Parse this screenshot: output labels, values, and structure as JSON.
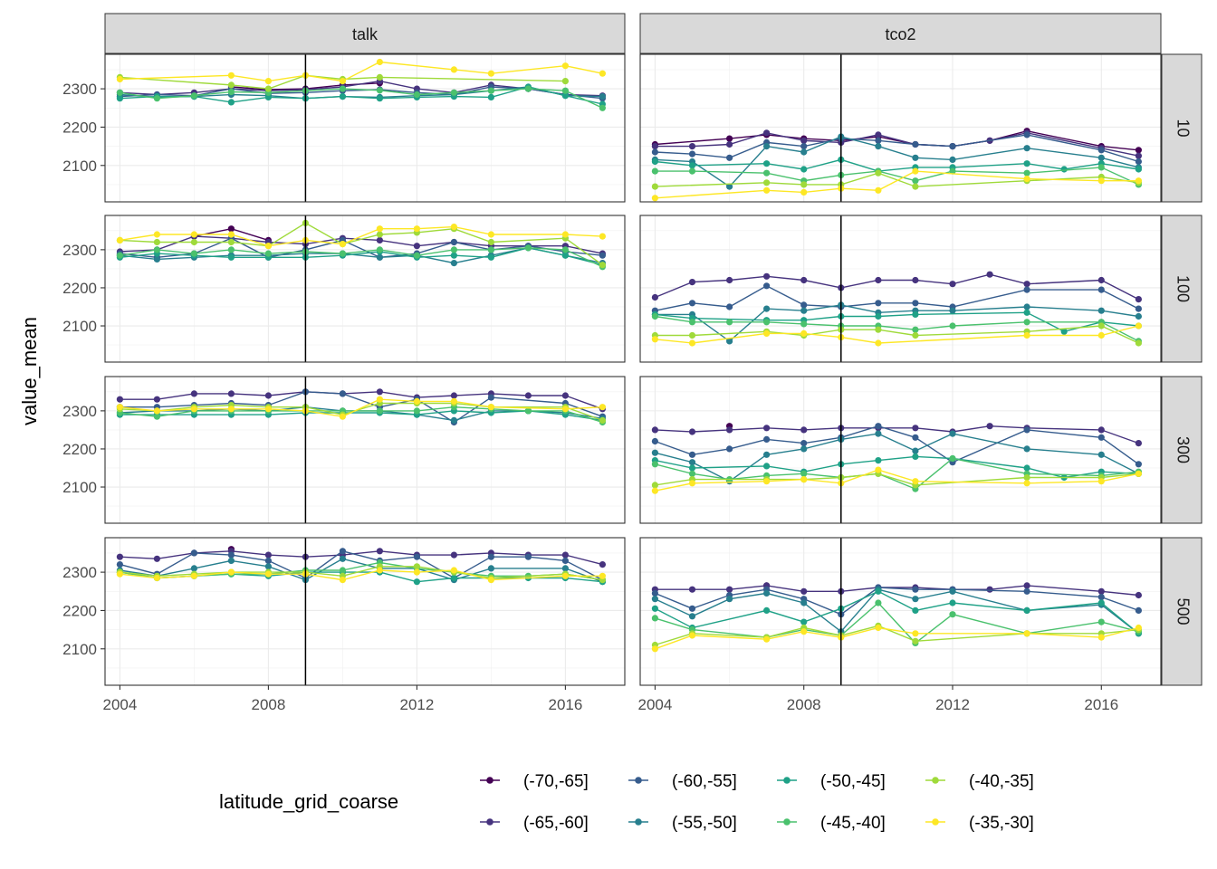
{
  "chart_data": {
    "type": "line",
    "facet_columns": [
      "talk",
      "tco2"
    ],
    "facet_rows": [
      "10",
      "100",
      "300",
      "500"
    ],
    "ylabel": "value_mean",
    "xlabel": "",
    "x_ticks": [
      2004,
      2008,
      2012,
      2016
    ],
    "y_ticks": [
      2100,
      2200,
      2300
    ],
    "xlim": [
      2003.6,
      2017.6
    ],
    "ylim": [
      2005,
      2390
    ],
    "reference_line_x": 2009,
    "legend": {
      "title": "latitude_grid_coarse",
      "position": "bottom",
      "entries": [
        "(-70,-65]",
        "(-65,-60]",
        "(-60,-55]",
        "(-55,-50]",
        "(-50,-45]",
        "(-45,-40]",
        "(-40,-35]",
        "(-35,-30]"
      ]
    },
    "colors": [
      "#440154",
      "#46337e",
      "#365c8d",
      "#277f8e",
      "#1fa187",
      "#4ac16d",
      "#9fda3a",
      "#fde725"
    ],
    "x": [
      2004,
      2005,
      2006,
      2007,
      2008,
      2009,
      2010,
      2011,
      2012,
      2013,
      2014,
      2015,
      2016,
      2017
    ],
    "panels": [
      {
        "column": "talk",
        "row": "10",
        "series": [
          [
            null,
            null,
            null,
            2305,
            2298,
            2300,
            2310,
            2315,
            null,
            null,
            null,
            null,
            null,
            null
          ],
          [
            2290,
            2285,
            2290,
            2300,
            2295,
            2298,
            2305,
            2320,
            2300,
            2290,
            2310,
            2300,
            2285,
            2282
          ],
          [
            2280,
            2285,
            2282,
            2300,
            2288,
            2290,
            2295,
            2298,
            2290,
            2285,
            2305,
            2300,
            2285,
            2275
          ],
          [
            2285,
            2278,
            2280,
            2285,
            2282,
            2275,
            2280,
            2278,
            2282,
            2285,
            2295,
            2305,
            2282,
            2280
          ],
          [
            2275,
            2280,
            2280,
            2265,
            2278,
            2275,
            2280,
            2275,
            2278,
            2280,
            2278,
            2305,
            2282,
            2260
          ],
          [
            2290,
            2275,
            2282,
            2292,
            2290,
            2295,
            2300,
            2296,
            2285,
            2290,
            2295,
            2300,
            2295,
            2250
          ],
          [
            2330,
            null,
            null,
            2310,
            2300,
            2335,
            2325,
            2330,
            null,
            null,
            null,
            null,
            2320,
            null
          ],
          [
            2325,
            null,
            null,
            2335,
            2320,
            2335,
            2320,
            2370,
            null,
            2350,
            2340,
            null,
            2360,
            2340
          ]
        ]
      },
      {
        "column": "tco2",
        "row": "10",
        "series": [
          [
            2155,
            null,
            2170,
            2180,
            2170,
            2165,
            2175,
            2155,
            2150,
            2165,
            2190,
            null,
            2150,
            2140
          ],
          [
            2150,
            2150,
            2155,
            2185,
            2165,
            2160,
            2180,
            2155,
            2150,
            2165,
            2185,
            null,
            2145,
            2125
          ],
          [
            2135,
            2130,
            2120,
            2160,
            2150,
            2170,
            2165,
            2155,
            2150,
            null,
            2180,
            null,
            2140,
            2110
          ],
          [
            2115,
            2110,
            2045,
            2150,
            2135,
            2175,
            2150,
            2120,
            2115,
            null,
            2145,
            null,
            2120,
            2095
          ],
          [
            2110,
            2100,
            null,
            2105,
            2090,
            2115,
            2085,
            2095,
            2095,
            null,
            2105,
            2090,
            2105,
            2090
          ],
          [
            2085,
            2085,
            null,
            2080,
            2060,
            2075,
            2085,
            2060,
            2085,
            null,
            2080,
            null,
            2095,
            2050
          ],
          [
            2045,
            null,
            null,
            2055,
            2050,
            2050,
            2080,
            2045,
            null,
            null,
            2060,
            null,
            2070,
            2055
          ],
          [
            2015,
            null,
            null,
            2035,
            2030,
            2040,
            2035,
            2085,
            null,
            null,
            2065,
            null,
            2060,
            2060
          ]
        ]
      },
      {
        "column": "talk",
        "row": "100",
        "series": [
          [
            null,
            null,
            2335,
            2355,
            2325,
            null,
            null,
            null,
            null,
            null,
            null,
            null,
            null,
            null
          ],
          [
            2295,
            2300,
            2335,
            2330,
            2320,
            2315,
            2330,
            2325,
            2310,
            2320,
            2310,
            2310,
            2310,
            2290
          ],
          [
            2290,
            2280,
            2290,
            2330,
            2280,
            2300,
            2325,
            2280,
            2290,
            2320,
            2300,
            2310,
            2295,
            2285
          ],
          [
            2285,
            2275,
            2280,
            2285,
            2285,
            2290,
            2290,
            2280,
            2285,
            2265,
            2285,
            2305,
            2285,
            2265
          ],
          [
            2280,
            2290,
            2285,
            2280,
            2280,
            2280,
            2285,
            2295,
            2280,
            2285,
            2280,
            2305,
            2285,
            2260
          ],
          [
            2285,
            2300,
            2290,
            2300,
            2290,
            2295,
            2290,
            2300,
            2285,
            2300,
            2300,
            2305,
            2300,
            2255
          ],
          [
            2325,
            2320,
            2320,
            2320,
            2310,
            2370,
            2315,
            2340,
            2345,
            2355,
            2320,
            null,
            2330,
            2260
          ],
          [
            2325,
            2340,
            2340,
            2340,
            2310,
            2325,
            2315,
            2355,
            2355,
            2360,
            2340,
            null,
            2340,
            2335
          ]
        ]
      },
      {
        "column": "tco2",
        "row": "100",
        "series": [
          [
            null,
            null,
            null,
            null,
            null,
            null,
            null,
            null,
            null,
            null,
            null,
            null,
            null,
            null
          ],
          [
            2175,
            2215,
            2220,
            2230,
            2220,
            2200,
            2220,
            2220,
            2210,
            2235,
            2210,
            null,
            2220,
            2170
          ],
          [
            2140,
            2160,
            2150,
            2205,
            2155,
            2150,
            2160,
            2160,
            2150,
            null,
            2195,
            null,
            2195,
            2145
          ],
          [
            2130,
            2130,
            2060,
            2145,
            2140,
            2155,
            2135,
            2140,
            2140,
            null,
            2150,
            null,
            2140,
            2125
          ],
          [
            2130,
            2120,
            null,
            2115,
            2115,
            2125,
            2125,
            2130,
            null,
            null,
            2135,
            2085,
            2110,
            2100
          ],
          [
            2125,
            2110,
            2110,
            2110,
            2105,
            2100,
            2100,
            2090,
            2100,
            null,
            2110,
            null,
            2110,
            2060
          ],
          [
            2075,
            2075,
            null,
            2085,
            2075,
            2090,
            2090,
            2075,
            null,
            null,
            2085,
            null,
            2100,
            2055
          ],
          [
            2065,
            2055,
            null,
            2080,
            2080,
            2070,
            2055,
            null,
            null,
            null,
            2075,
            null,
            2075,
            2100
          ]
        ]
      },
      {
        "column": "talk",
        "row": "300",
        "series": [
          [
            null,
            null,
            null,
            null,
            null,
            null,
            null,
            null,
            null,
            null,
            null,
            null,
            null,
            null
          ],
          [
            2330,
            2330,
            2345,
            2345,
            2340,
            2350,
            2345,
            2350,
            2335,
            2340,
            2345,
            2340,
            2340,
            2305
          ],
          [
            2310,
            2310,
            2315,
            2320,
            2315,
            2350,
            2345,
            2310,
            2330,
            2270,
            2335,
            null,
            2320,
            2285
          ],
          [
            2295,
            2300,
            2300,
            2305,
            2300,
            2310,
            2300,
            2300,
            2290,
            2275,
            2300,
            2300,
            2295,
            2280
          ],
          [
            2290,
            2290,
            2290,
            2290,
            2290,
            2295,
            2295,
            2295,
            2290,
            2300,
            2295,
            2300,
            2290,
            2275
          ],
          [
            2295,
            2285,
            2300,
            2300,
            2300,
            2300,
            2300,
            2300,
            2300,
            2310,
            2305,
            2300,
            2300,
            2270
          ],
          [
            2305,
            2300,
            2310,
            2315,
            2310,
            2310,
            2290,
            2320,
            2320,
            2320,
            2310,
            null,
            2310,
            2275
          ],
          [
            2310,
            2300,
            2305,
            2305,
            2305,
            2300,
            2285,
            2330,
            2325,
            2325,
            2310,
            null,
            2305,
            2310
          ]
        ]
      },
      {
        "column": "tco2",
        "row": "300",
        "series": [
          [
            null,
            null,
            2260,
            null,
            null,
            null,
            null,
            null,
            null,
            null,
            null,
            null,
            null,
            null
          ],
          [
            2250,
            2245,
            2250,
            2255,
            2250,
            2255,
            2255,
            2255,
            2245,
            2260,
            2255,
            null,
            2250,
            2215
          ],
          [
            2220,
            2185,
            2200,
            2225,
            2215,
            2230,
            2260,
            2230,
            2165,
            null,
            2250,
            null,
            2230,
            2160
          ],
          [
            2190,
            2165,
            2115,
            2185,
            2200,
            2225,
            2240,
            2195,
            2240,
            null,
            2200,
            null,
            2185,
            2135
          ],
          [
            2170,
            2150,
            null,
            2155,
            2140,
            2160,
            2170,
            2180,
            2175,
            null,
            2150,
            2125,
            2140,
            2135
          ],
          [
            2160,
            2135,
            2120,
            2130,
            2135,
            2125,
            2135,
            2095,
            2175,
            null,
            2135,
            null,
            2130,
            2140
          ],
          [
            2105,
            2120,
            null,
            2120,
            2120,
            2125,
            2135,
            2105,
            null,
            null,
            2125,
            null,
            2125,
            2135
          ],
          [
            2090,
            2110,
            null,
            2115,
            2120,
            2110,
            2145,
            2115,
            null,
            null,
            2110,
            null,
            2115,
            2135
          ]
        ]
      },
      {
        "column": "talk",
        "row": "500",
        "series": [
          [
            null,
            null,
            null,
            2360,
            null,
            null,
            null,
            null,
            null,
            null,
            null,
            null,
            null,
            null
          ],
          [
            2340,
            2335,
            2350,
            2355,
            2345,
            2340,
            2345,
            2355,
            2345,
            2345,
            2350,
            2345,
            2345,
            2320
          ],
          [
            2320,
            2295,
            2350,
            2345,
            2330,
            2285,
            2355,
            2330,
            2340,
            2285,
            2340,
            2340,
            2330,
            2280
          ],
          [
            2305,
            2290,
            2310,
            2330,
            2315,
            2280,
            2335,
            2310,
            2310,
            2280,
            2310,
            null,
            2310,
            2275
          ],
          [
            2300,
            2285,
            2290,
            2295,
            2290,
            2300,
            2300,
            2300,
            2275,
            2285,
            2285,
            2285,
            2285,
            2275
          ],
          [
            2300,
            2285,
            2290,
            2295,
            2295,
            2305,
            2305,
            2325,
            2310,
            2300,
            2290,
            2290,
            2295,
            2280
          ],
          [
            2300,
            2290,
            2295,
            2300,
            2300,
            2300,
            2290,
            2315,
            2315,
            2300,
            2285,
            null,
            2295,
            2280
          ],
          [
            2295,
            2285,
            2290,
            2300,
            2295,
            2295,
            2280,
            2305,
            2300,
            2305,
            2280,
            null,
            2290,
            2290
          ]
        ]
      },
      {
        "column": "tco2",
        "row": "500",
        "series": [
          [
            null,
            null,
            null,
            2265,
            null,
            null,
            null,
            null,
            null,
            null,
            null,
            null,
            null,
            null
          ],
          [
            2255,
            2255,
            2255,
            2265,
            2250,
            2250,
            2260,
            2260,
            2255,
            2255,
            2265,
            null,
            2250,
            2240
          ],
          [
            2245,
            2205,
            2240,
            2255,
            2230,
            2190,
            2260,
            2255,
            2255,
            null,
            2250,
            null,
            2235,
            2200
          ],
          [
            2230,
            2185,
            2230,
            2245,
            2220,
            2145,
            2255,
            2230,
            2250,
            null,
            2200,
            null,
            2215,
            2140
          ],
          [
            2205,
            2155,
            null,
            2200,
            2170,
            2205,
            2250,
            2200,
            2220,
            null,
            2200,
            null,
            2220,
            2140
          ],
          [
            2180,
            2150,
            null,
            2130,
            2150,
            2135,
            2220,
            2115,
            2190,
            null,
            2140,
            null,
            2170,
            2145
          ],
          [
            2110,
            2140,
            null,
            2130,
            2155,
            2135,
            2160,
            2120,
            null,
            null,
            2140,
            null,
            2140,
            2150
          ],
          [
            2100,
            2135,
            null,
            2125,
            2145,
            2130,
            2155,
            2140,
            null,
            null,
            2140,
            null,
            2130,
            2155
          ]
        ]
      }
    ]
  }
}
